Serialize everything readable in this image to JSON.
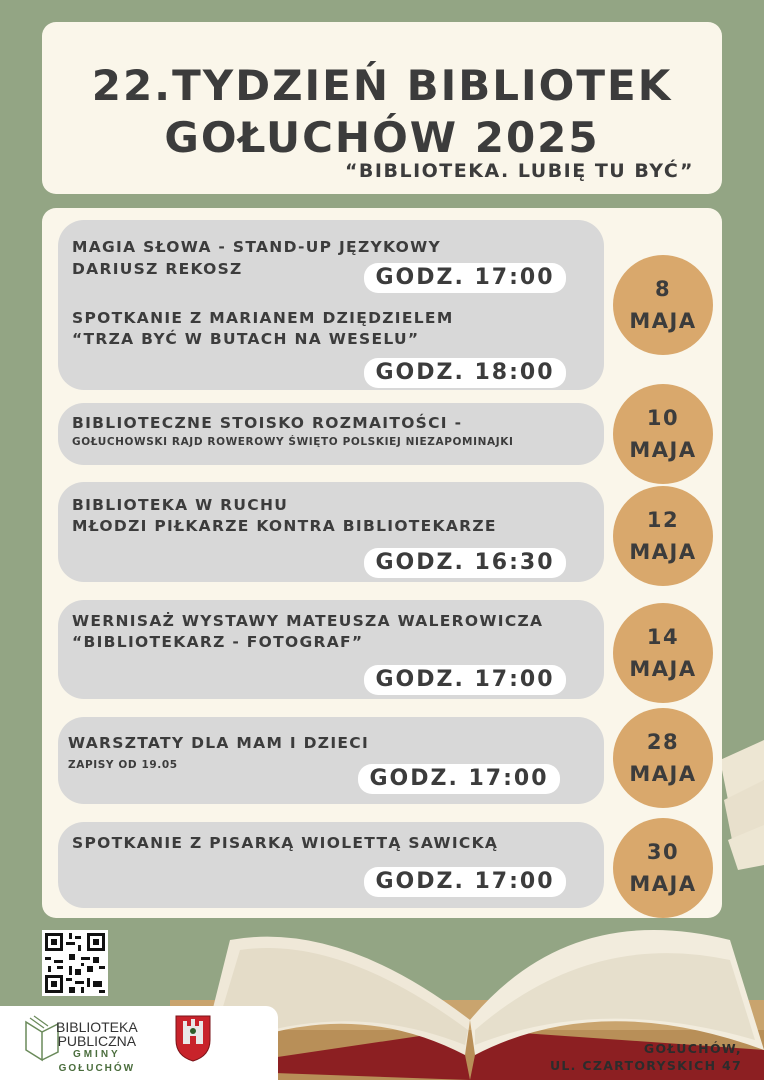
{
  "header": {
    "title_line1": "22.TYDZIEŃ BIBLIOTEK",
    "title_line2": "GOŁUCHÓW 2025",
    "subtitle": "“BIBLIOTEKA. LUBIĘ TU BYĆ”"
  },
  "events": [
    {
      "line1": "MAGIA SŁOWA - STAND-UP JĘZYKOWY",
      "line2": "DARIUSZ REKOSZ",
      "time1": "GODZ. 17:00",
      "line3": "SPOTKANIE Z MARIANEM DZIĘDZIELEM",
      "line4": "“TRZA BYĆ W BUTACH NA WESELU”",
      "time2": "GODZ. 18:00",
      "date_day": "8",
      "date_month": "MAJA"
    },
    {
      "line1": "BIBLIOTECZNE STOISKO ROZMAITOŚCI -",
      "small": "GOŁUCHOWSKI RAJD ROWEROWY ŚWIĘTO POLSKIEJ NIEZAPOMINAJKI",
      "date_day": "10",
      "date_month": "MAJA"
    },
    {
      "line1": "BIBLIOTEKA W RUCHU",
      "line2": "MŁODZI PIŁKARZE KONTRA BIBLIOTEKARZE",
      "time": "GODZ. 16:30",
      "date_day": "12",
      "date_month": "MAJA"
    },
    {
      "line1": "WERNISAŻ WYSTAWY MATEUSZA WALEROWICZA",
      "line2": "“BIBLIOTEKARZ - FOTOGRAF”",
      "time": "GODZ. 17:00",
      "date_day": "14",
      "date_month": "MAJA"
    },
    {
      "line1": "WARSZTATY DLA MAM I DZIECI",
      "small": "ZAPISY OD 19.05",
      "time": "GODZ. 17:00",
      "date_day": "28",
      "date_month": "MAJA"
    },
    {
      "line1": "SPOTKANIE Z PISARKĄ WIOLETTĄ SAWICKĄ",
      "time": "GODZ. 17:00",
      "date_day": "30",
      "date_month": "MAJA"
    }
  ],
  "footer": {
    "library_line1": "BIBLIOTEKA",
    "library_line2": "PUBLICZNA",
    "library_line3": "GMINY",
    "library_line4": "GOŁUCHÓW",
    "address_line1": "GOŁUCHÓW,",
    "address_line2": "UL. CZARTORYSKICH 47"
  },
  "colors": {
    "background": "#93a584",
    "panel": "#faf6ea",
    "event_box": "#d8d8d8",
    "date_circle": "#d9a86c"
  },
  "icons": [
    "qr-code-icon",
    "book-logo-icon",
    "coat-of-arms-icon",
    "open-book-image"
  ]
}
